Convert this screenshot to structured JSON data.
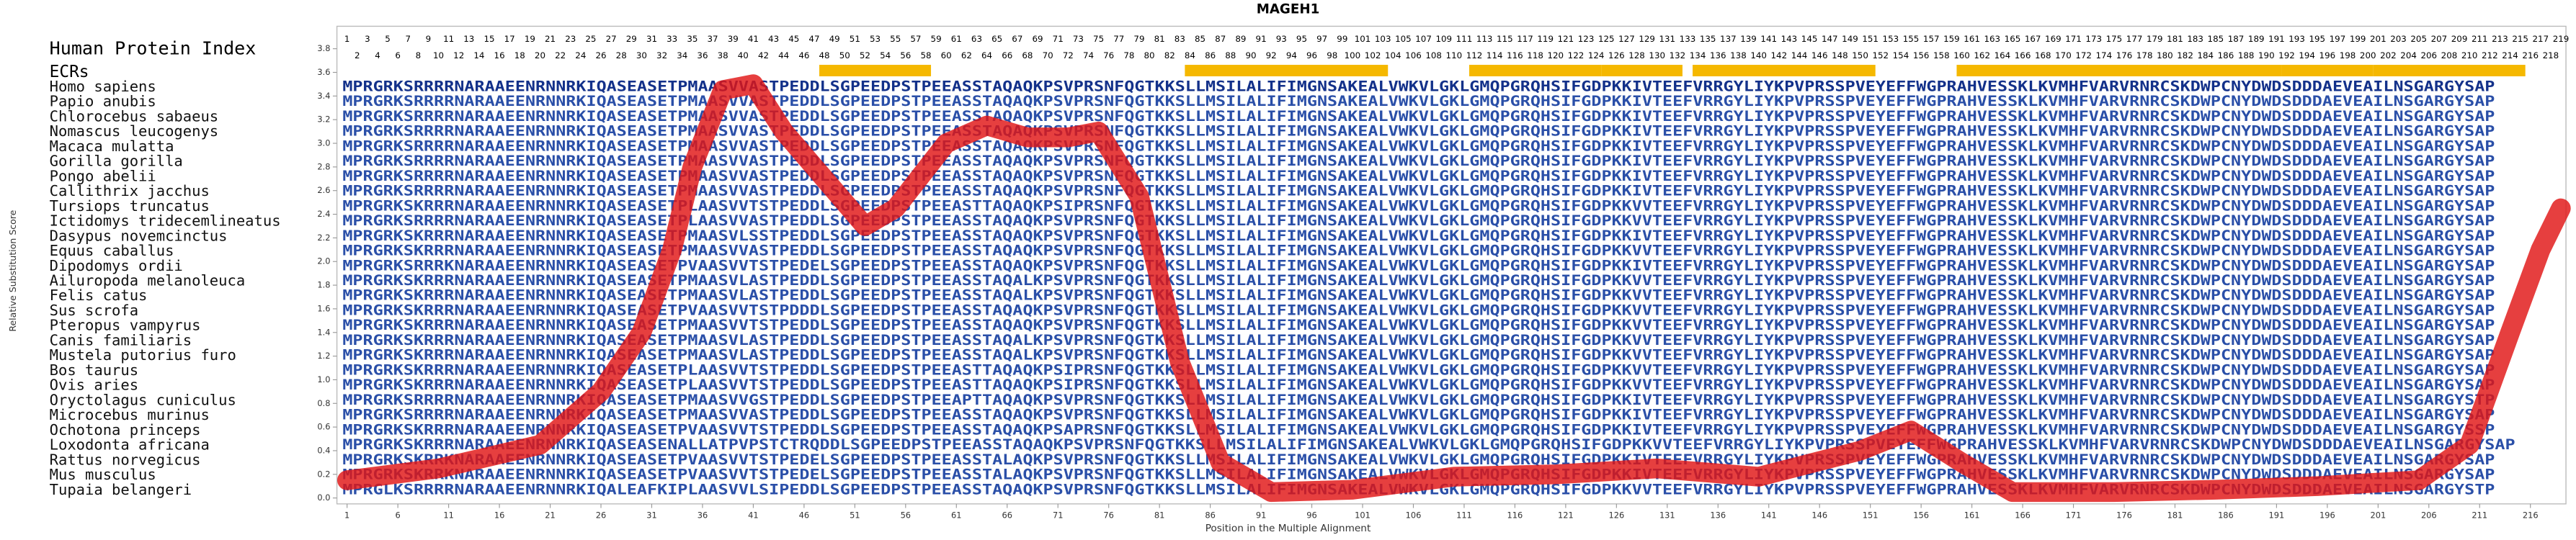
{
  "chart_data": {
    "type": "line",
    "title": "MAGEH1",
    "xlabel": "Position in the Multiple Alignment",
    "ylabel": "Relative Substitution Score",
    "xlim": [
      0,
      219.5
    ],
    "ylim": [
      -0.05,
      3.99
    ],
    "xticks": [
      1,
      6,
      11,
      16,
      21,
      26,
      31,
      36,
      41,
      46,
      51,
      56,
      61,
      66,
      71,
      76,
      81,
      86,
      91,
      96,
      101,
      106,
      111,
      116,
      121,
      126,
      131,
      136,
      141,
      146,
      151,
      156,
      161,
      166,
      171,
      176,
      181,
      186,
      191,
      196,
      201,
      206,
      211,
      216
    ],
    "yticks": [
      {
        "value": 0,
        "label": "0.0"
      },
      0.2,
      0.4,
      0.6,
      0.8,
      {
        "value": 1,
        "label": "1.0"
      },
      1.2,
      1.4,
      1.6,
      1.8,
      {
        "value": 2,
        "label": "2.0"
      },
      2.2,
      2.4,
      2.6,
      2.8,
      {
        "value": 3,
        "label": "3.0"
      },
      3.2,
      3.4,
      3.6,
      3.8
    ],
    "color": "#e01515",
    "x": [
      1,
      10,
      20,
      26,
      30,
      33,
      35,
      38,
      41,
      44,
      48,
      52,
      55,
      60,
      64,
      68,
      72,
      75,
      79,
      83,
      87,
      92,
      100,
      110,
      120,
      130,
      140,
      150,
      155,
      160,
      165,
      175,
      185,
      195,
      205,
      210,
      214,
      217,
      219
    ],
    "values": [
      0.15,
      0.25,
      0.45,
      0.9,
      1.4,
      2.1,
      2.8,
      3.45,
      3.5,
      3.1,
      2.7,
      2.3,
      2.45,
      3.0,
      3.15,
      3.05,
      3.05,
      3.1,
      2.55,
      1.15,
      0.3,
      0.05,
      0.07,
      0.18,
      0.2,
      0.25,
      0.18,
      0.4,
      0.57,
      0.3,
      0.05,
      0.05,
      0.07,
      0.1,
      0.15,
      0.45,
      1.4,
      2.1,
      2.45
    ],
    "alignment": {
      "index_label": "Human Protein Index",
      "index_top": [
        1,
        3,
        5,
        7,
        9,
        11,
        13,
        15,
        17,
        19,
        21,
        23,
        25,
        27,
        29,
        31,
        33,
        35,
        37,
        39,
        41,
        43,
        45,
        47,
        49,
        51,
        53,
        55,
        57,
        59,
        61,
        63,
        65,
        67,
        69,
        71,
        73,
        75,
        77,
        79,
        81,
        83,
        85,
        87,
        89,
        91,
        93,
        95,
        97,
        99,
        101,
        103,
        105,
        107,
        109,
        111,
        113,
        115,
        117,
        119,
        121,
        123,
        125,
        127,
        129,
        131,
        133,
        135,
        137,
        139,
        141,
        143,
        145,
        147,
        149,
        151,
        153,
        155,
        157,
        159,
        161,
        163,
        165,
        167,
        169,
        171,
        173,
        175,
        177,
        179,
        181,
        183,
        185,
        187,
        189,
        191,
        193,
        195,
        197,
        199,
        201,
        203,
        205,
        207,
        209,
        211,
        213,
        215,
        217,
        219
      ],
      "index_bottom": [
        2,
        4,
        6,
        8,
        10,
        12,
        14,
        16,
        18,
        20,
        22,
        24,
        26,
        28,
        30,
        32,
        34,
        36,
        38,
        40,
        42,
        44,
        46,
        48,
        50,
        52,
        54,
        56,
        58,
        60,
        62,
        64,
        66,
        68,
        70,
        72,
        74,
        76,
        78,
        80,
        82,
        84,
        86,
        88,
        90,
        92,
        94,
        96,
        98,
        100,
        102,
        104,
        106,
        108,
        110,
        112,
        114,
        116,
        118,
        120,
        122,
        124,
        126,
        128,
        130,
        132,
        134,
        136,
        138,
        140,
        142,
        144,
        146,
        148,
        150,
        152,
        154,
        156,
        158,
        160,
        162,
        164,
        166,
        168,
        170,
        172,
        174,
        176,
        178,
        180,
        182,
        184,
        186,
        188,
        190,
        192,
        194,
        196,
        198,
        200,
        202,
        204,
        206,
        208,
        210,
        212,
        214,
        216,
        218
      ],
      "ecr_label": "ECRs",
      "ecr_color": "#f5b800",
      "ecrs": [
        [
          48,
          58
        ],
        [
          84,
          103
        ],
        [
          112,
          124
        ],
        [
          125,
          132
        ],
        [
          134,
          151
        ],
        [
          160,
          191
        ],
        [
          192,
          200
        ],
        [
          201,
          215
        ]
      ],
      "species": [
        "Homo sapiens",
        "Papio anubis",
        "Chlorocebus sabaeus",
        "Nomascus leucogenys",
        "Macaca mulatta",
        "Gorilla gorilla",
        "Pongo abelii",
        "Callithrix jacchus",
        "Tursiops truncatus",
        "Ictidomys tridecemlineatus",
        "Dasypus novemcinctus",
        "Equus caballus",
        "Dipodomys ordii",
        "Ailuropoda melanoleuca",
        "Felis catus",
        "Sus scrofa",
        "Pteropus vampyrus",
        "Canis familiaris",
        "Mustela putorius furo",
        "Bos taurus",
        "Ovis aries",
        "Oryctolagus cuniculus",
        "Microcebus murinus",
        "Ochotona princeps",
        "Loxodonta africana",
        "Rattus norvegicus",
        "Mus musculus",
        "Tupaia belangeri"
      ],
      "sequences": [
        "MPRGRKSRRRRNARAAEENRNNRKIQASEASETPMAASVVASTPEDDLSGPEEDPSTPEEASSTAQAQKPSVPRSNFQGTKKSLLMSILALIFIMGNSAKEALVWKVLGKLGMQPGRQHSIFGDPKKIVTEEFVRRGYLIYKPVPRSSPVEYEFFWGPRAHVESSKLKVMHFVARVRNRCSKDWPCNYDWDSDDDAEVEAILNSGARGYSAP",
        "MPRGRKSRRRRNARAAEENRNNRKIQASEASETPMAASVVASTPEDDLSGPEEDPSTPEEASSTAQAQKPSVPRSNFQGTKKSLLMSILALIFIMGNSAKEALVWKVLGKLGMQPGRQHSIFGDPKKIVTEEFVRRGYLIYKPVPRSSPVEYEFFWGPRAHVESSKLKVMHFVARVRNRCSKDWPCNYDWDSDDDAEVEAILNSGARGYSAP",
        "MPRGRKSRRRRNARAAEENRNNRKIQASEASETPMAASVVASTPEDDLSGPEEDPSTPEEASSTAQAQKPSVPRSNFQGTKKSLLMSILALIFIMGNSAKEALVWKVLGKLGMQPGRQHSIFGDPKKIVTEEFVRRGYLIYKPVPRSSPVEYEFFWGPRAHVESSKLKVMHFVARVRNRCSKDWPCNYDWDSDDDAEVEAILNSGARGYSAP",
        "MPRGRKSRRRRNARAAEENRNNRKIQASEASETPMAASVVASTPEDDLSGPEEDPSTPEEASSTAQAQKPSVPRSNFQGTKKSLLMSILALIFIMGNSAKEALVWKVLGKLGMQPGRQHSIFGDPKKIVTEEFVRRGYLIYKPVPRSSPVEYEFFWGPRAHVESSKLKVMHFVARVRNRCSKDWPCNYDWDSDDDAEVEAILNSGARGYSAP",
        "MPRGRKSRRRRNARAAEENRNNRKIQASEASETPMAASVVASTPEDDLSGPEEDPSTPEEASSTAQAQKPSVPRSNFQGTKKSLLMSILALIFIMGNSAKEALVWKVLGKLGMQPGRQHSIFGDPKKIVTEEFVRRGYLIYKPVPRSSPVEYEFFWGPRAHVESSKLKVMHFVARVRNRCSKDWPCNYDWDSDDDAEVEAILNSGARGYSAP",
        "MPRGRKSRRRRNARAAEENRNNRKIQASEASETPMAASVVASTPEDDLSGPEEDPSTPEEASSTAQAQKPSVPRSNFQGTKKSLLMSILALIFIMGNSAKEALVWKVLGKLGMQPGRQHSIFGDPKKIVTEEFVRRGYLIYKPVPRSSPVEYEFFWGPRAHVESSKLKVMHFVARVRNRCSKDWPCNYDWDSDDDAEVEAILNSGARGYSAP",
        "MPRGRKSRRRRNARAAEENRNNRKIQASEASETPMAASVVASTPEDDLSGPEEDPSTPEEASSTAQAQKPSVPRSNFQGTKKSLLMSILALIFIMGNSAKEALVWKVLGKLGMQPGRQHSIFGDPKKIVTEEFVRRGYLIYKPVPRSSPVEYEFFWGPRAHVESSKLKVMHFVARVRNRCSKDWPCNYDWDSDDDAEVEAILNSGARGYSAP",
        "MPRGRKSRRRRNARAAEENRNNRKIQASEASETPMAASVVASTPEDDLSGPEEDPSTPEEASSTAQAQKPSVPRSNFQGTKKSLLMSILALIFIMGNSAKEALVWKVLGKLGMQPGRQHSIFGDPKKIVTEEFVRRGYLIYKPVPRSSPVEYEFFWGPRAHVESSKLKVMHFVARVRNRCSKDWPCNYDWDSDDDAEVEAILNSGARGYSAP",
        "MPRGRKSKRRRNARAAEENRNNRKIQASEASETPLAASVVTSTPEDDLSGPEEDPSTPEEASTTAQAQKPSIPRSNFQGTKKSLLMSILALIFIMGNSAKEALVWKVLGKLGMQPGRQHSIFGDPKKVVTEEFVRRGYLIYKPVPRSSPVEYEFFWGPRAHVESSKLKVMHFVARVRNRCSKDWPCNYDWDSDDDAEVEAILNSGARGYSAP",
        "MPRGRKSRRRRNARAAEENRNNRKIQASEASETPLAASVVASTPEDDLSGPEEDPSTPEEASSTAQAQKPSVPRSNFQGTKKSLLMSILALIFIMGNSAKEALVWKVLGKLGMQPGRQHSIFGDPKKVVTEEFVRRGYLIYKPVPRSSPVEYEFFWGPRAHVESSKLKVMHFVARVRNRCSKDWPCNYDWDSDDDAEVEAILNSGARGYSAP",
        "MPRGRKSKRRRNARAAEENRNNRKIQASEASETPMAASVLSSTPEDDLSGPEEDPSTPEEASSTAQAQKPSVPRSNFQGTKKSLLMSILALIFIMGNSAKEALVWKVLGKLGMQPGRQHSIFGDPKKIVTEEFVRRGYLIYKPVPRSSPVEYEFFWGPRAHVESSKLKVMHFVARVRNRCSKDWPCNYDWDSDDDAEVEAILNSGARGYSAP",
        "MPRGRKSKRRRNARAAEENRNNRKIQASEASETPMAASVVASTPEDDLSGPEEDPSTPEEASSTAQAQKPSVPRSNFQGTKKSLLMSILALIFIMGNSAKEALVWKVLGKLGMQPGRQHSIFGDPKKVVTEEFVRRGYLIYKPVPRSSPVEYEFFWGPRAHVESSKLKVMHFVARVRNRCSKDWPCNYDWDSDDDAEVEAILNSGARGYSAP",
        "MPRGRKSRRRKNARAAEENRNNRKIQASEASETPVAASVVTSTPEDELSGPEEDPSTPEEASSTAQAQKPSVPRSNFQGTKKSLLMSILALIFIMGNSAKEALVWKVLGKLGMQPGRQHSIFGDPKKIVTEEFVRRGYLIYKPVPRSSPVEYEFFWGPRAHVESSKLKVMHFVARVRNRCSKDWPCNYDWDSDDDAEVEAILNSGARGYSAP",
        "MPRGRKSKRRRNARAAEENRNNRKIQASEASETPMAASVLASTPEDDLSGPEEDPSTPEEASSTAQALKPSVPRSNFQGTKKSLLMSILALIFIMGNSAKEALVWKVLGKLGMQPGRQHSIFGDPKKVVTEEFVRRGYLIYKPVPRSSPVEYEFFWGPRAHVESSKLKVMHFVARVRNRCSKDWPCNYDWDSDDDAEVEAILNSGARGYSAP",
        "MPRGRKSKRRRNARAAEENRNNRKIQASEASETPMAASVLASTPEDDLSGPEEDPSTPEEASSTAQALKPSVPRSNFQGTKKSLLMSILALIFIMGNSAKEALVWKVLGKLGMQPGRQHSIFGDPKKVVTEEFVRRGYLIYKPVPRSSPVEYEFFWGPRAHVESSKLKVMHFVARVRNRCSKDWPCNYDWDSDDDAEVEAILNSGARGYSAP",
        "MPRGRKSKRRRNARAAEENRNNRKIQASEASETPVAASVVTSTPDDDLSGPEEDPSTPEEASSTAQAQKPSVPRSNFQGTKKSLLMSILALIFIMGNSAKEALVWKVLGKLGMQPGRQHSIFGDPKKVVTEEFVRRGYLIYKPVPRSSPVEYEFFWGPRAHVESSKLKVMHFVARVRNRCSKDWPCNYDWDSDDDAEVEAILNSGARGYSAP",
        "MPRGRKSKRRRNARAAEENRNNRKIQASEASETPMAASVVTSTPEDDLSGPEEDPSTPEEASSTAQAQKPSVPRSNFQGTKKSLLMSILALIFIMGNSAKEALVWKVLGKLGMQPGRQHSIFGDPKKVVTEEFVRRGYLIYKPVPRSSPVEYEFFWGPRAHVESSKLKVMHFVARVRNRCSKDWPCNYDWDSDDDAEVEAILNSGARGYSAP",
        "MPRGRKSKRRRNARAAEENRNNRKIQASEASETPMAASVLASTPEDDLSGPEEDPSTPEEASSTAQALKPSVPRSNFQGTKKSLLMSILALIFIMGNSAKEALVWKVLGKLGMQPGRQHSIFGDPKKVVTEEFVRRGYLIYKPVPRSSPVEYEFFWGPRAHVESSKLKVMHFVARVRNRCSKDWPCNYDWDSDDDAEVEAILNSGARGYSAP",
        "MPRGRKSKRRRNARAAEENRNNRKIQASEASETPMAASVLASTPEDDLSGPEEDPSTPEEASSTAQALKPSVPRSNFQGTKKSLLMSILALIFIMGNSAKEALVWKVLGKLGMQPGRQHSIFGDPKKVVTEEFVRRGYLIYKPVPRSSPVEYEFFWGPRAHVESSKLKVMHFVARVRNRCSKDWPCNYDWDSDDDAEVEAILNSGARGYSAP",
        "MPRGRKSKRRRNARAAEENRNNRKIQASEASETPLAASVVTSTPEDDLSGPEEDPSTPEEASTTAQAQKPSIPRSNFQGTKKSLLMSILALIFIMGNSAKEALVWKVLGKLGMQPGRQHSIFGDPKKVVTEEFVRRGYLIYKPVPRSSPVEYEFFWGPRAHVESSKLKVMHFVARVRNRCSKDWPCNYDWDSDDDAEVEAILNSGARGYSAP",
        "MPRGRKSKRRRNARAAEENRNNRKIQASEASETPLAASVVTSTPEDDLSGPEEDPSTPEEASTTAQAQKPSIPRSNFQGTKKSLLMSILALIFIMGNSAKEALVWKVLGKLGMQPGRQHSIFGDPKKVVTEEFVRRGYLIYKPVPRSSPVEYEFFWGPRAHVESSKLKVMHFVARVRNRCSKDWPCNYDWDSDDDAEVEAILNSGARGYSAP",
        "MPRGRKSRRRRNARAAEENRNNRKIQASEASETPMAASVVGSTPEDDLSGPEEDPSTPEEAPTTAQAQKPSVPRSNFQGTKKSLLMSILALIFIMGNSAKEALVWKVLGKLGMQPGRQHSIFGDPKKIVTEEFVRRGYLIYKPVPRSSPVEYEFFWGPRAHVESSKLKVMHFVARVRNRCSKDWPCNYDWDSDDDAEVEAILNSGARGYSTP",
        "MPRGRKSRRRRNARAAEENRNNRKIQASEASETPMAASVVASTPEDDLSGPEEDPSTPEEASSTAQAQKPSVPRSNFQGTKKSLLMSILALIFIMGNSAKEALVWKVLGKLGMQPGRQHSIFGDPKKIVTEEFVRRGYLIYKPVPRSSPVEYEFFWGPRAHVESSKLKVMHFVARVRNRCSKDWPCNYDWDSDDDAEVEAILNSGARGYSAP",
        "MPRGRKSKRRRNARAAEENRNNRKIQASEASETPVAASVVTSTPEDDLSGPEEDPSTPEEASSTAQAQKPSAPRSNFQGTKKSLLMSILALIFIMGNSAKEALVWKVLGKLGMQPGRQHSIFGDPKKIVTEEFVRRGYLIYKPVPRSSPVEYEFFWGPRAHVESSKLKVMHFVARVRNRCSKDWPCNYDWDSDDDAEVEAILNSGARGYSSP",
        "MPRGRKSKRRRNARAAEENRNNRKIQASEASENALLATPVPSTCTRQDDLSGPEEDPSTPEEASSTAQAQKPSVPRSNFQGTKKSLLMSILALIFIMGNSAKEALVWKVLGKLGMQPGRQHSIFGDPKKVVTEEFVRRGYLIYKPVPRSSPVEYEFFWGPRAHVESSKLKVMHFVARVRNRCSKDWPCNYDWDSDDDAEVEAILNSGARGYSAP",
        "MPRGRKSKRRKNARAAEENRNNRKIQASEASETPVAASVVTSTPEDELSGPEEDPSTPEEASSTALAQKPSVPRSNFQGTKKSLLMSILALIFIMGNSAKEALVWKVLGKLGMQPGRQHSIFGDPKKIVTEEFVRRGYLIYKPVPRSSPVEYEFFWGPRAHVESSKLKVMHFVARVRNRCSKDWPCNYDWDSDDDAEVEAILNSGARGYSAP",
        "MPRGRKSKRRKNARAAEENRNNRKIQASEASETPVAASVVTSTPEDELSGPEEDPSTPEEASSTALAQKPSVPRSNFQGTKKSLLMSILALIFIMGNSAKEALVWKVLGKLGMQPGRQHSIFGDPKKIVTEEFVRRGYLIYKPVPRSSPVEYEFFWGPRAHVESSKLKVMHFVARVRNRCSKDWPCNYDWDSDDDAEVEAILNSGARGYSAP",
        "MPRGLKSRRRRNARAAEENRNNRKIQALEAFKIPLAASVVLSIPEDDLSGPEEDPSTPEEASSTAQAQKPSVPRSNFQGTKKSLLMSILALIFIMGNSAKEALVWKVLGKLGMQPGRQHSIFGDPKKVVTEEFVRRGYLIYKPVPRSSPVEYEFFWGPRAHVESSKLKVMHFVARVRNRCSKDWPCNYDWDSDDDAEVEAILNSGARGYSTP"
      ]
    }
  }
}
